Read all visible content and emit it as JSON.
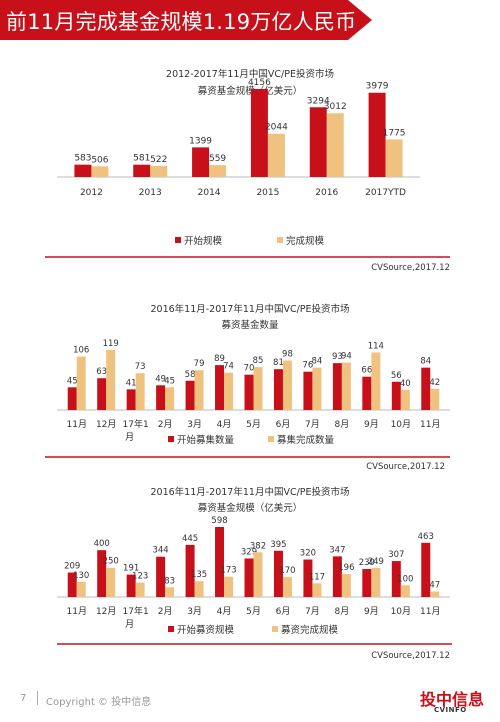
{
  "page": {
    "title": "前11月完成基金规模1.19万亿人民币",
    "footer": {
      "page_number": "7",
      "copyright": "Copyright © 投中信息",
      "logo_text": "投中信息",
      "logo_sub": "CVINFO"
    }
  },
  "colors": {
    "start": "#c8101a",
    "complete": "#f0c27f",
    "axis": "#bbbbbb",
    "rule": "#c8101a"
  },
  "chart_data": [
    {
      "type": "bar",
      "title": "2012-2017年11月中国VC/PE投资市场",
      "subtitle": "募资基金规模（亿美元）",
      "categories": [
        "2012",
        "2013",
        "2014",
        "2015",
        "2016",
        "2017YTD"
      ],
      "series": [
        {
          "name": "开始规模",
          "values": [
            583,
            581,
            1399,
            4156,
            3294,
            3979
          ]
        },
        {
          "name": "完成规模",
          "values": [
            506,
            522,
            559,
            2044,
            3012,
            1775
          ]
        }
      ],
      "source": "CVSource,2017.12",
      "legend": "bottom-center"
    },
    {
      "type": "bar",
      "title": "2016年11月-2017年11月中国VC/PE投资市场",
      "subtitle": "募资基金数量",
      "categories": [
        "11月",
        "12月",
        "17年1月",
        "2月",
        "3月",
        "4月",
        "5月",
        "6月",
        "7月",
        "8月",
        "9月",
        "10月",
        "11月"
      ],
      "series": [
        {
          "name": "开始募集数量",
          "values": [
            45,
            63,
            41,
            49,
            58,
            89,
            70,
            81,
            76,
            93,
            66,
            56,
            84
          ]
        },
        {
          "name": "募集完成数量",
          "values": [
            106,
            119,
            73,
            45,
            79,
            74,
            85,
            98,
            84,
            94,
            114,
            40,
            42
          ]
        }
      ],
      "source": "CVSource,2017.12",
      "legend": "bottom-center"
    },
    {
      "type": "bar",
      "title": "2016年11月-2017年11月中国VC/PE投资市场",
      "subtitle": "募资基金规模（亿美元）",
      "categories": [
        "11月",
        "12月",
        "17年1月",
        "2月",
        "3月",
        "4月",
        "5月",
        "6月",
        "7月",
        "8月",
        "9月",
        "10月",
        "11月"
      ],
      "series": [
        {
          "name": "开始募资规模",
          "values": [
            209,
            400,
            191,
            344,
            445,
            598,
            329,
            395,
            320,
            347,
            239,
            307,
            463
          ]
        },
        {
          "name": "募资完成规模",
          "values": [
            130,
            250,
            123,
            83,
            135,
            173,
            382,
            170,
            117,
            196,
            249,
            100,
            47
          ]
        }
      ],
      "source": "CVSource,2017.12",
      "legend": "bottom-center"
    }
  ]
}
